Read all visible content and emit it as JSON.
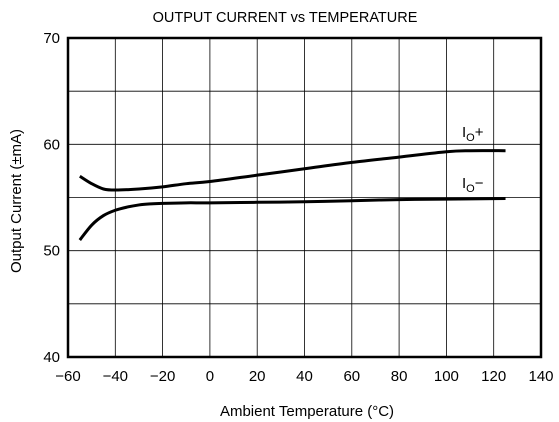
{
  "chart_data": {
    "type": "line",
    "title": "OUTPUT CURRENT vs TEMPERATURE",
    "xlabel": "Ambient Temperature (°C)",
    "ylabel": "Output Current (±mA)",
    "xlim": [
      -60,
      140
    ],
    "ylim": [
      40,
      70
    ],
    "xticks": [
      -60,
      -40,
      -20,
      0,
      20,
      40,
      60,
      80,
      100,
      120,
      140
    ],
    "yticks": [
      40,
      50,
      60,
      70
    ],
    "x_tick_labels": [
      "−60",
      "−40",
      "−20",
      "0",
      "20",
      "40",
      "60",
      "80",
      "100",
      "120",
      "140"
    ],
    "y_tick_labels": [
      "40",
      "50",
      "60",
      "70"
    ],
    "grid": true,
    "series": [
      {
        "name": "IO+",
        "label_main": "I",
        "label_sub": "O",
        "label_sign": "+",
        "x": [
          -55,
          -50,
          -45,
          -40,
          -30,
          -20,
          -10,
          0,
          20,
          40,
          60,
          80,
          100,
          110,
          125
        ],
        "y": [
          57.0,
          56.3,
          55.8,
          55.7,
          55.8,
          56.0,
          56.3,
          56.5,
          57.1,
          57.7,
          58.3,
          58.8,
          59.3,
          59.4,
          59.4
        ]
      },
      {
        "name": "IO−",
        "label_main": "I",
        "label_sub": "O",
        "label_sign": "−",
        "x": [
          -55,
          -50,
          -45,
          -40,
          -35,
          -30,
          -25,
          -20,
          -10,
          0,
          20,
          40,
          60,
          80,
          100,
          125
        ],
        "y": [
          51.0,
          52.4,
          53.3,
          53.8,
          54.1,
          54.3,
          54.4,
          54.45,
          54.5,
          54.5,
          54.55,
          54.6,
          54.7,
          54.8,
          54.85,
          54.9
        ]
      }
    ]
  }
}
